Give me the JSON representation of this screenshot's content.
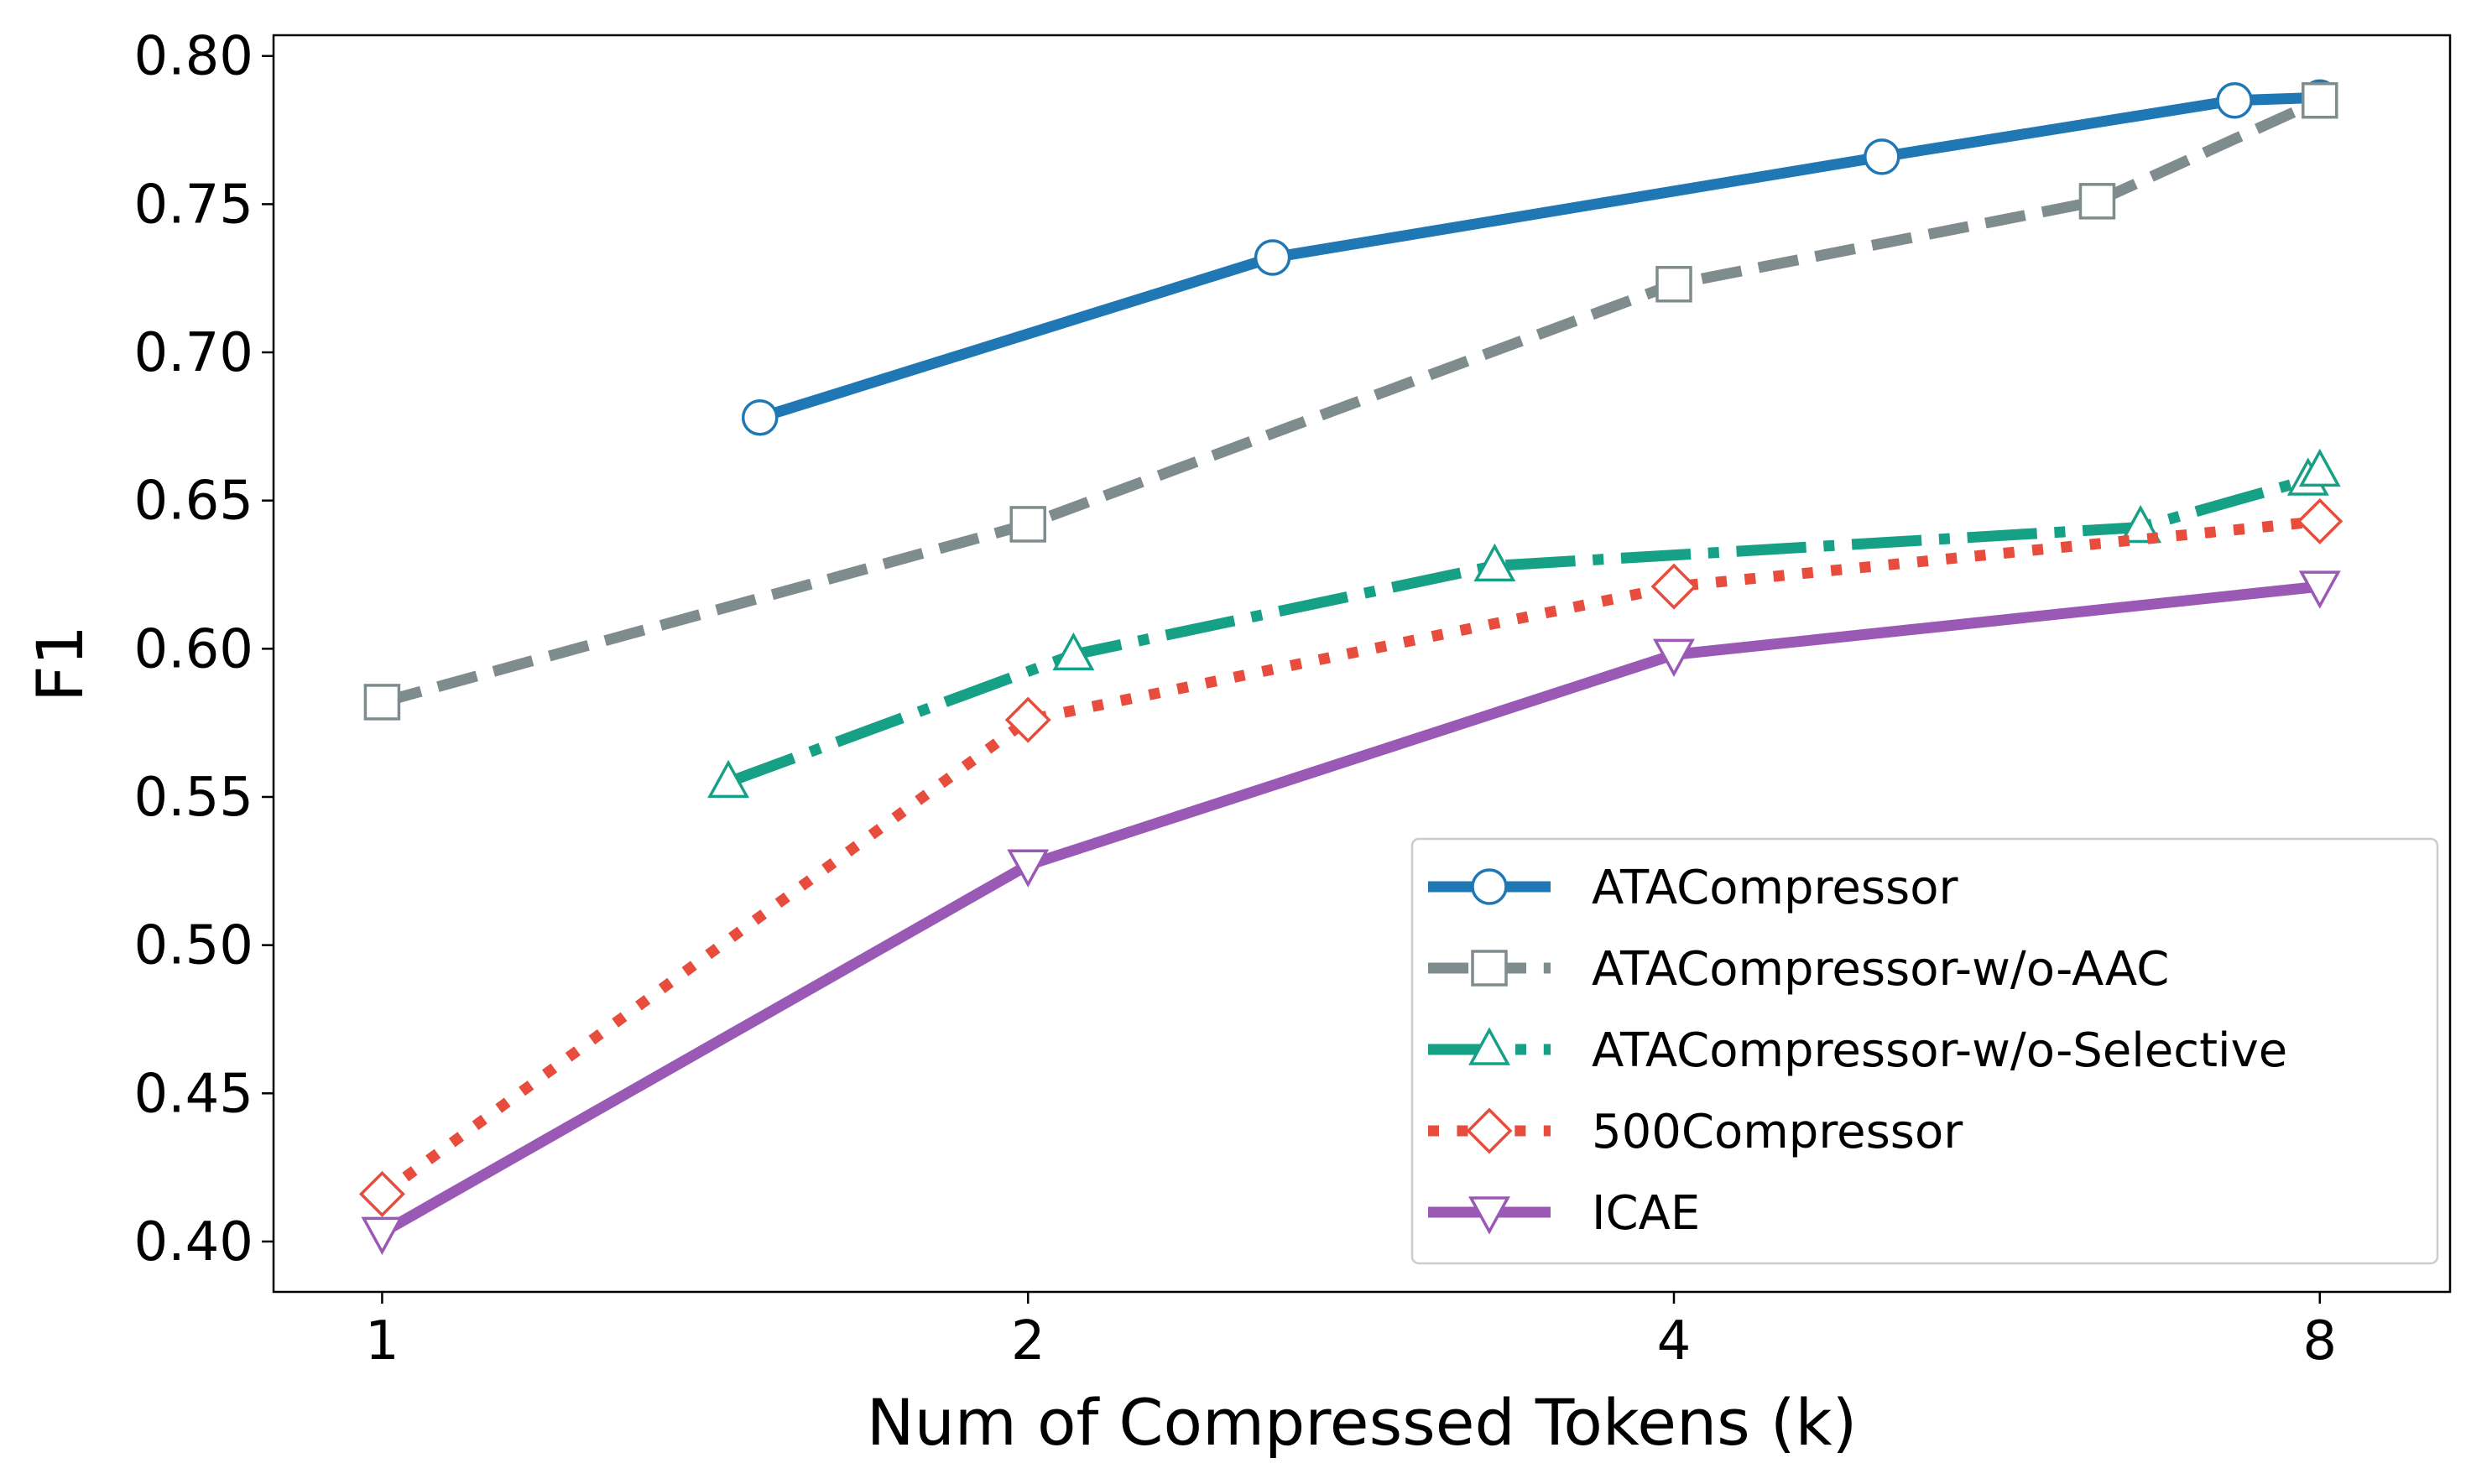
{
  "chart_data": {
    "type": "line",
    "xlabel": "Num of Compressed Tokens (k)",
    "ylabel": "F1",
    "x_scale": "log2",
    "xlim": [
      0.89,
      9.2
    ],
    "ylim": [
      0.383,
      0.807
    ],
    "xticks": [
      1,
      2,
      4,
      8
    ],
    "xtick_labels": [
      "1",
      "2",
      "4",
      "8"
    ],
    "yticks": [
      0.4,
      0.45,
      0.5,
      0.55,
      0.6,
      0.65,
      0.7,
      0.75,
      0.8
    ],
    "ytick_labels": [
      "0.40",
      "0.45",
      "0.50",
      "0.55",
      "0.60",
      "0.65",
      "0.70",
      "0.75",
      "0.80"
    ],
    "grid": false,
    "legend_position": "lower-right",
    "series": [
      {
        "name": "ATACompressor",
        "color": "#1f77b4",
        "line_style": "solid",
        "marker": "circle",
        "x": [
          1.5,
          2.6,
          5.0,
          7.3,
          8.0
        ],
        "y": [
          0.678,
          0.732,
          0.766,
          0.785,
          0.786
        ]
      },
      {
        "name": "ATACompressor-w/o-AAC",
        "color": "#7f8c8d",
        "line_style": "dashed",
        "marker": "square",
        "x": [
          1,
          2,
          4,
          6.3,
          8
        ],
        "y": [
          0.582,
          0.642,
          0.723,
          0.751,
          0.785
        ]
      },
      {
        "name": "ATACompressor-w/o-Selective",
        "color": "#16a085",
        "line_style": "dashdot",
        "marker": "triangle-up",
        "x": [
          1.45,
          2.1,
          3.3,
          6.6,
          7.9,
          8.0
        ],
        "y": [
          0.555,
          0.598,
          0.628,
          0.641,
          0.657,
          0.66
        ]
      },
      {
        "name": "500Compressor",
        "color": "#e74c3c",
        "line_style": "dotted",
        "marker": "diamond",
        "x": [
          1,
          2,
          4,
          8
        ],
        "y": [
          0.416,
          0.576,
          0.621,
          0.643
        ]
      },
      {
        "name": "ICAE",
        "color": "#9b59b6",
        "line_style": "solid",
        "marker": "triangle-down",
        "x": [
          1,
          2,
          4,
          8
        ],
        "y": [
          0.403,
          0.527,
          0.598,
          0.621
        ]
      }
    ]
  }
}
